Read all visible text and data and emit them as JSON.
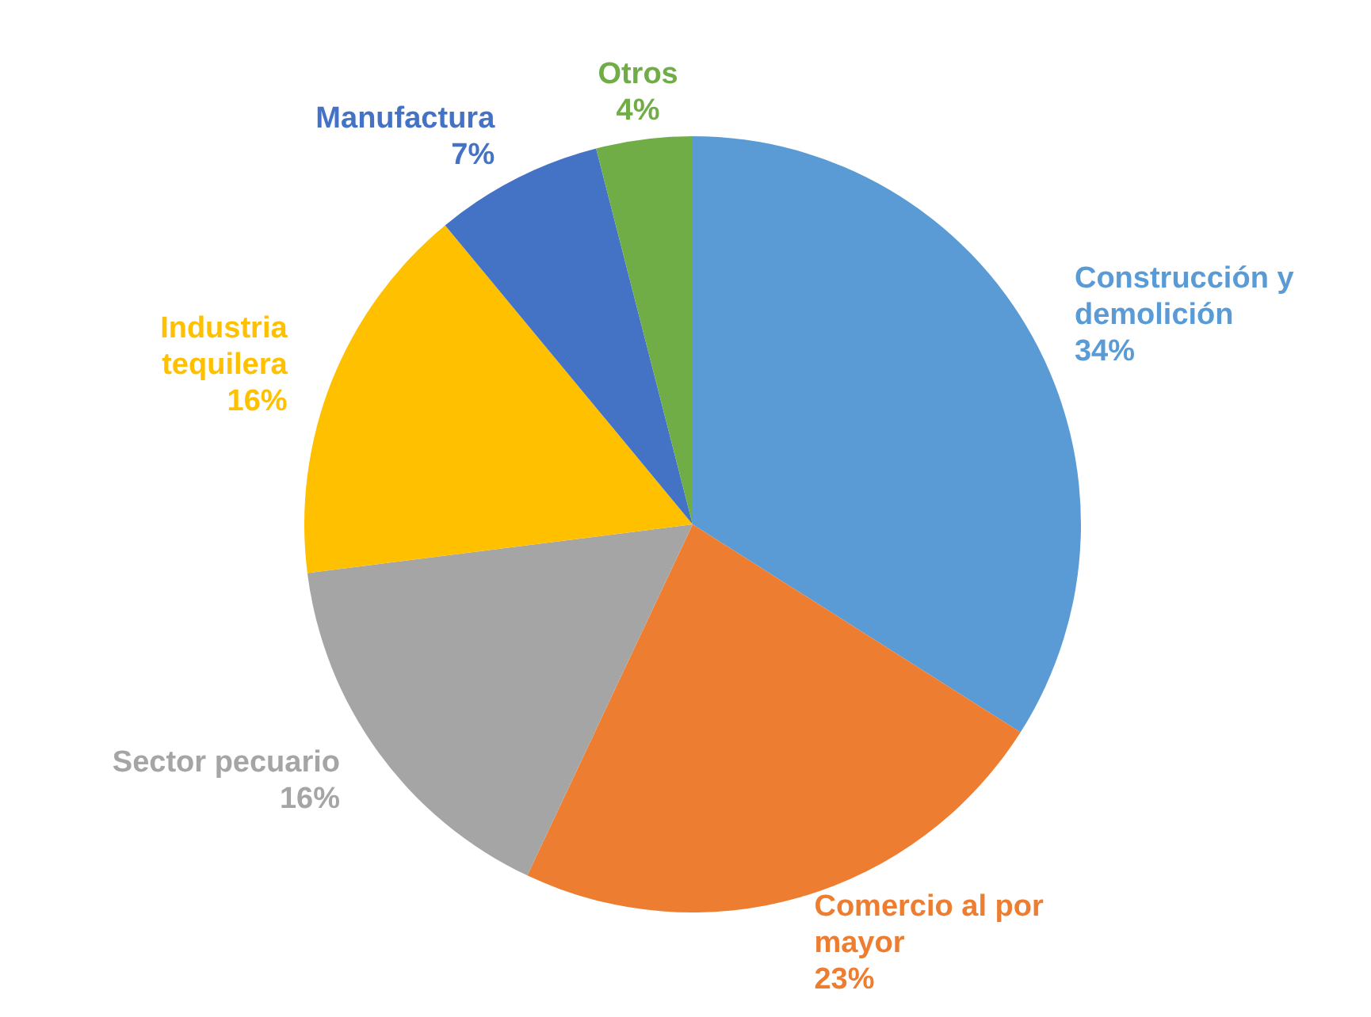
{
  "chart_data": {
    "type": "pie",
    "categories": [
      "Construcción y demolición",
      "Comercio al por mayor",
      "Sector pecuario",
      "Industria tequilera",
      "Manufactura",
      "Otros"
    ],
    "values": [
      34,
      23,
      16,
      16,
      7,
      4
    ],
    "colors": [
      "#5b9bd5",
      "#ed7d31",
      "#a5a5a5",
      "#ffc000",
      "#4472c4",
      "#70ad47"
    ],
    "value_labels": [
      "34%",
      "23%",
      "16%",
      "16%",
      "7%",
      "4%"
    ],
    "legend": false
  }
}
